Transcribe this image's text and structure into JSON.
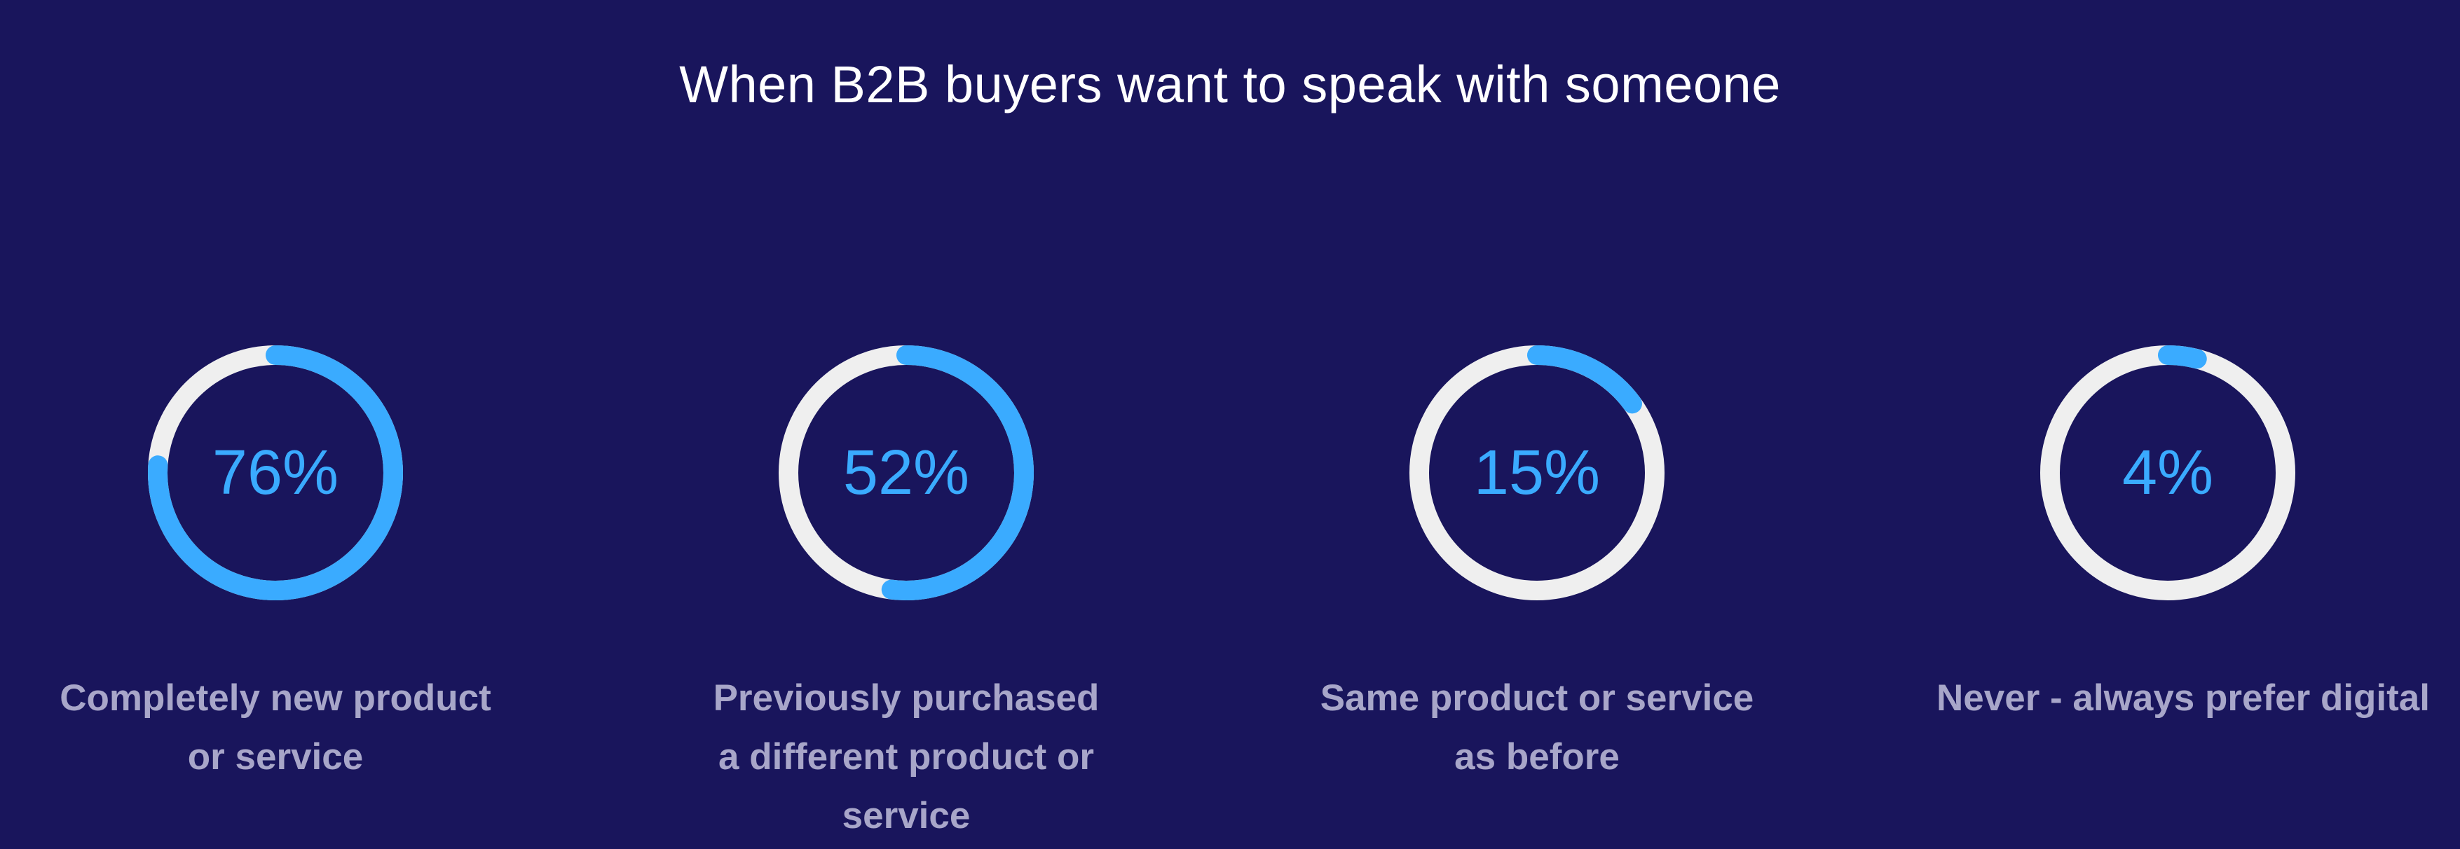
{
  "chart_data": {
    "type": "donut",
    "title": "When B2B buyers want to speak with someone",
    "categories": [
      "Completely new product or service",
      "Previously purchased a different product or service",
      "Same product or service as before",
      "Never - always prefer digital"
    ],
    "values": [
      76,
      52,
      15,
      4
    ],
    "value_labels": [
      "76%",
      "52%",
      "15%",
      "4%"
    ],
    "max": 100
  },
  "colors": {
    "background": "#19155c",
    "progress": "#3aabff",
    "track": "#efefef",
    "label": "#a8a6c9",
    "title": "#ffffff"
  }
}
